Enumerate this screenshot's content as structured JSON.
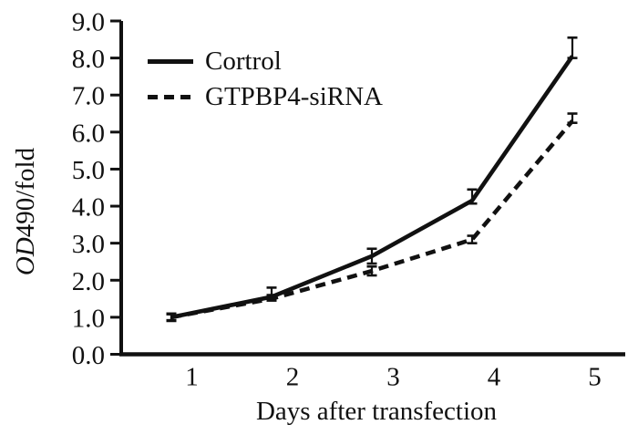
{
  "chart_data": {
    "type": "line",
    "xlabel": "Days after transfection",
    "ylabel": "OD490/fold",
    "ylabel_parts": {
      "italic": "OD",
      "regular": "490/fold"
    },
    "x": [
      1,
      2,
      3,
      4,
      5
    ],
    "x_ticks": [
      "1",
      "2",
      "3",
      "4",
      "5"
    ],
    "y_ticks": [
      "0.0",
      "1.0",
      "2.0",
      "3.0",
      "4.0",
      "5.0",
      "6.0",
      "7.0",
      "8.0",
      "9.0"
    ],
    "ylim": [
      0.0,
      9.0
    ],
    "xlim": [
      1,
      5
    ],
    "grid": false,
    "legend_position": "top-left-inside",
    "axis_color": "#111111",
    "background_color": "#ffffff",
    "series": [
      {
        "name": "Cortrol",
        "style": "solid",
        "color": "#111111",
        "values": [
          1.0,
          1.55,
          2.65,
          4.15,
          8.05
        ],
        "err_up": [
          0.1,
          0.25,
          0.2,
          0.3,
          0.5
        ],
        "err_down": [
          0.1,
          0.05,
          0.2,
          0.08,
          0.05
        ]
      },
      {
        "name": "GTPBP4-siRNA",
        "style": "dashed",
        "color": "#111111",
        "values": [
          1.0,
          1.5,
          2.25,
          3.1,
          6.3
        ],
        "err_up": [
          0.08,
          0.1,
          0.12,
          0.1,
          0.2
        ],
        "err_down": [
          0.08,
          0.05,
          0.12,
          0.1,
          0.05
        ]
      }
    ]
  }
}
